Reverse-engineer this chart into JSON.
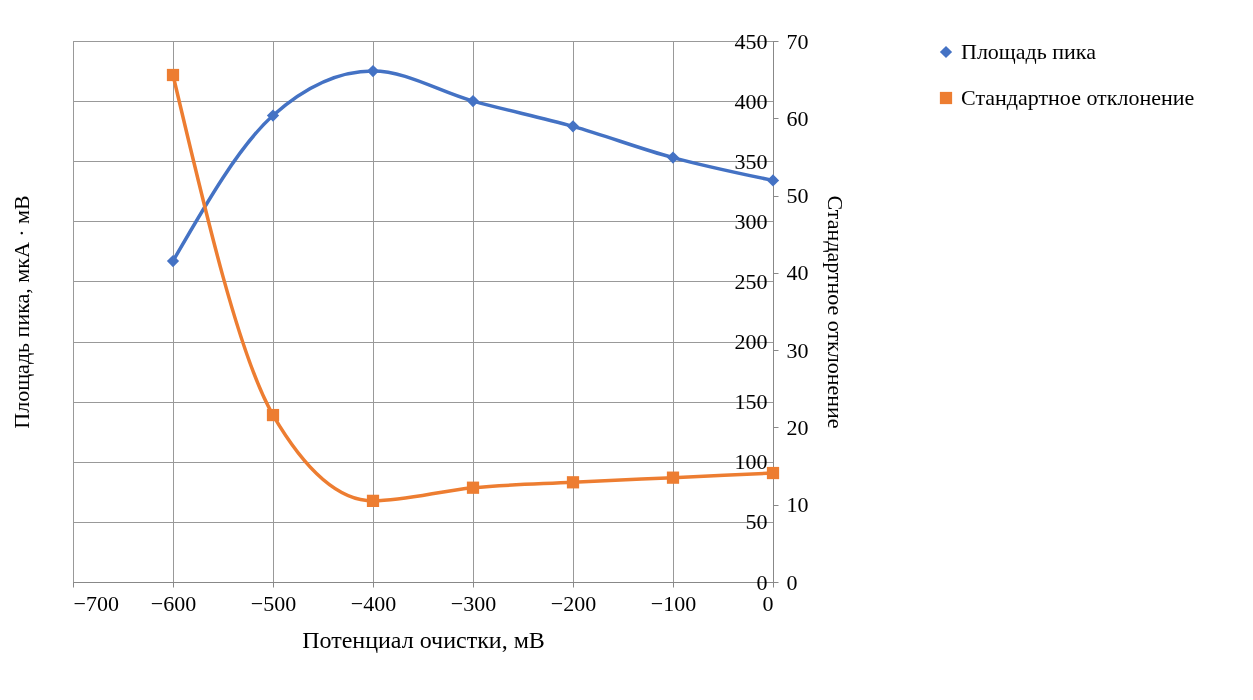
{
  "chart_data": {
    "type": "line",
    "xlabel": "Потенциал очистки, мВ",
    "ylabel": "Площадь пика, мкА · мВ",
    "y2label": "Стандартное отклонение",
    "x": [
      -600,
      -500,
      -400,
      -300,
      -200,
      -100,
      0
    ],
    "xlim": [
      -700,
      0
    ],
    "xticks": [
      -700,
      -600,
      -500,
      -400,
      -300,
      -200,
      -100,
      0
    ],
    "ylim": [
      0,
      450
    ],
    "yticks": [
      0,
      50,
      100,
      150,
      200,
      250,
      300,
      350,
      400,
      450
    ],
    "y2lim": [
      0,
      70
    ],
    "y2ticks": [
      0,
      10,
      20,
      30,
      40,
      50,
      60,
      70
    ],
    "grid": true,
    "legend": "right",
    "series": [
      {
        "name": "Площадь пика",
        "color": "#4472c4",
        "marker": "diamond",
        "values": [
          267,
          388,
          425,
          400,
          379,
          353,
          334
        ]
      },
      {
        "name": "Стандартное отклонение",
        "color": "#ed7d31",
        "marker": "square",
        "axis": "y2",
        "values": [
          65.6,
          21.6,
          10.5,
          12.2,
          12.9,
          13.5,
          14.1
        ]
      }
    ]
  }
}
